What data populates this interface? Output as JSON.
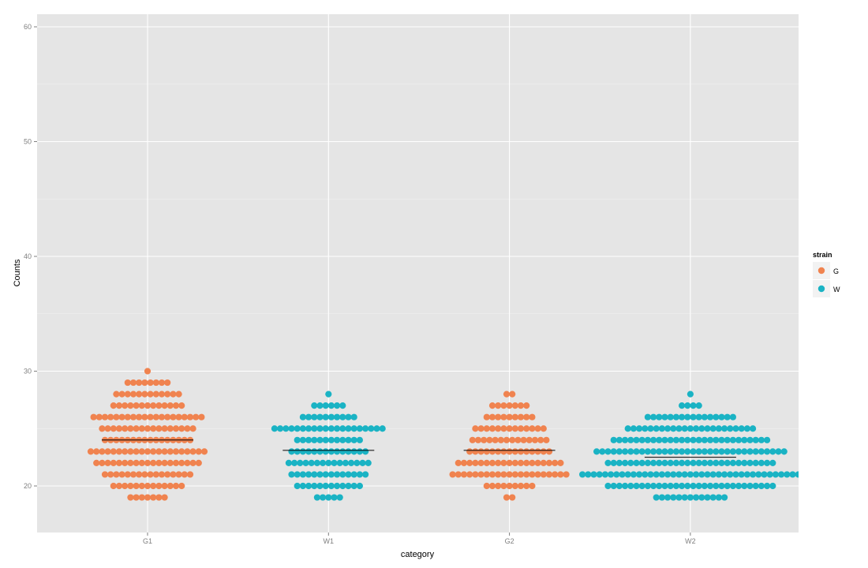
{
  "chart_data": {
    "type": "scatter",
    "subtype": "dotplot",
    "title": "",
    "xlabel": "category",
    "ylabel": "Counts",
    "categories": [
      "G1",
      "W1",
      "G2",
      "W2"
    ],
    "ylim": [
      16,
      62
    ],
    "yticks": [
      20,
      30,
      40,
      50,
      60
    ],
    "grid": true,
    "legend": {
      "title": "strain",
      "placement": "right",
      "entries": [
        {
          "label": "G",
          "color": "#F0834F"
        },
        {
          "label": "W",
          "color": "#1AB3C4"
        }
      ]
    },
    "series": [
      {
        "category": "G1",
        "strain": "G",
        "mean": 24.0,
        "counts_by_value": {
          "19": 7,
          "20": 13,
          "21": 16,
          "22": 19,
          "23": 21,
          "24": 16,
          "25": 17,
          "26": 20,
          "27": 13,
          "28": 12,
          "29": 8,
          "30": 1
        }
      },
      {
        "category": "W1",
        "strain": "W",
        "mean": 23.1,
        "counts_by_value": {
          "19": 5,
          "20": 12,
          "21": 14,
          "22": 15,
          "23": 14,
          "24": 12,
          "25": 20,
          "26": 10,
          "27": 6,
          "28": 1
        }
      },
      {
        "category": "G2",
        "strain": "G",
        "mean": 23.1,
        "counts_by_value": {
          "19": 2,
          "20": 9,
          "21": 21,
          "22": 19,
          "23": 15,
          "24": 14,
          "25": 13,
          "26": 9,
          "27": 7,
          "28": 2
        }
      },
      {
        "category": "W2",
        "strain": "W",
        "mean": 22.5,
        "counts_by_value": {
          "19": 13,
          "20": 30,
          "21": 39,
          "22": 30,
          "23": 34,
          "24": 28,
          "25": 23,
          "26": 16,
          "27": 4,
          "28": 1
        }
      }
    ]
  }
}
